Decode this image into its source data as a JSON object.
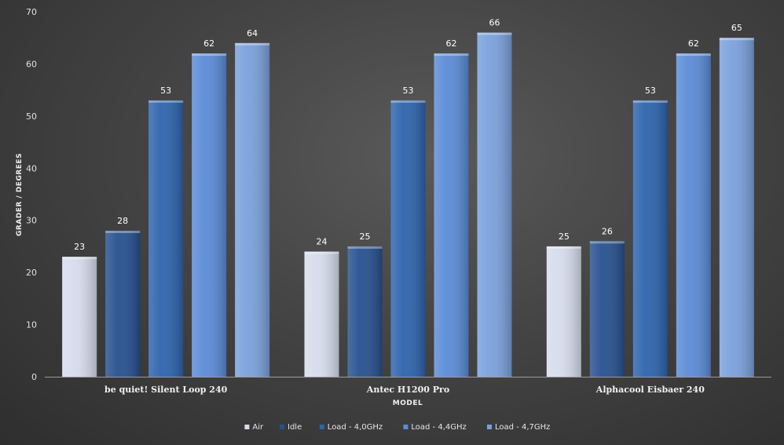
{
  "chart_data": {
    "type": "bar",
    "title": "",
    "xlabel": "MODEL",
    "ylabel": "GRADER / DEGREES",
    "ylim": [
      0,
      70
    ],
    "yticks": [
      0,
      10,
      20,
      30,
      40,
      50,
      60,
      70
    ],
    "categories": [
      "be quiet! Silent Loop 240",
      "Antec H1200 Pro",
      "Alphacool Eisbaer 240"
    ],
    "series": [
      {
        "name": "Air",
        "values": [
          23,
          24,
          25
        ],
        "color": "#d6dcec"
      },
      {
        "name": "Idle",
        "values": [
          28,
          25,
          26
        ],
        "color": "#26508e"
      },
      {
        "name": "Load - 4,0GHz",
        "values": [
          53,
          53,
          53
        ],
        "color": "#2d63ad"
      },
      {
        "name": "Load - 4,4GHz",
        "values": [
          62,
          62,
          62
        ],
        "color": "#5a8bd6"
      },
      {
        "name": "Load - 4,7GHz",
        "values": [
          64,
          66,
          65
        ],
        "color": "#7aa0dc"
      }
    ],
    "grid": false,
    "legend_position": "bottom",
    "data_labels": true
  }
}
